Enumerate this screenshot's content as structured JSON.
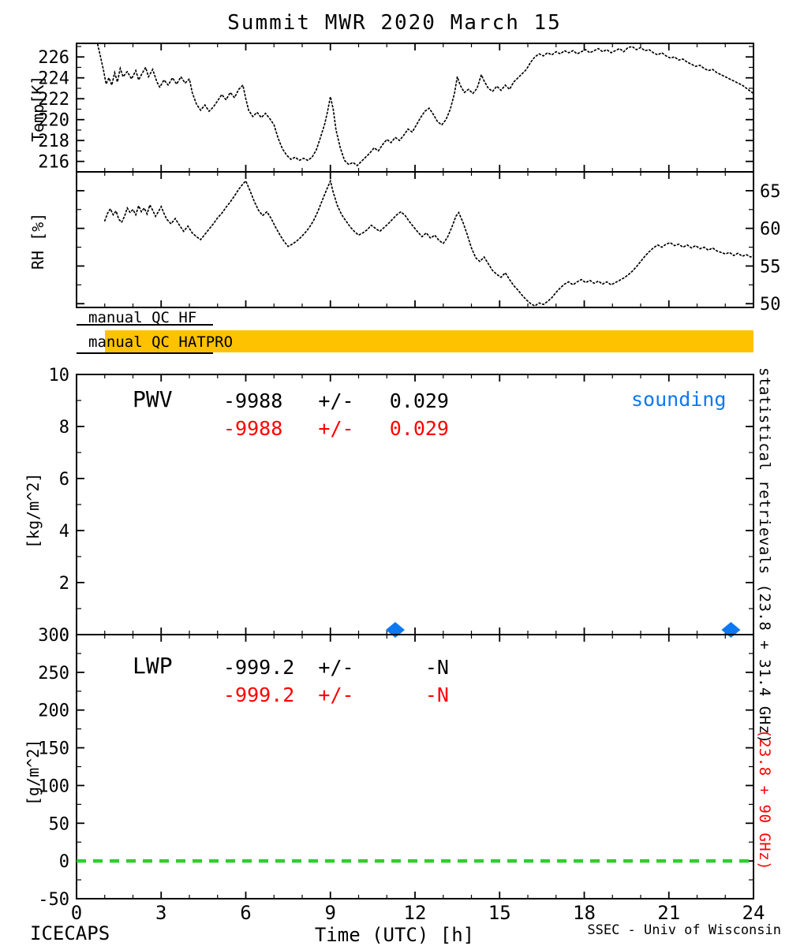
{
  "title": "Summit MWR 2020 March 15",
  "footer": {
    "left": "ICECAPS",
    "right": "SSEC - Univ of Wisconsin"
  },
  "colors": {
    "gold": "#FFC200",
    "blue": "#0d78f0",
    "red": "#ff0000",
    "green": "#33CC33",
    "black": "#000000"
  },
  "qc": [
    {
      "label": "manual QC HF",
      "bar": false
    },
    {
      "label": "manual QC HATPRO",
      "bar": true
    }
  ],
  "right_labels": {
    "black": "statistical retrievals (23.8 + 31.4 GHz)",
    "red": "(23.8 + 90 GHz)"
  },
  "xaxis": {
    "label": "Time (UTC) [h]",
    "min": 0,
    "max": 24,
    "ticks": [
      0,
      3,
      6,
      9,
      12,
      15,
      18,
      21,
      24
    ]
  },
  "chart_data": [
    {
      "id": "temp",
      "type": "line",
      "ylabel": "Temp[K]",
      "ylim": [
        215.0,
        227.3
      ],
      "yticks": [
        216,
        218,
        220,
        222,
        224,
        226
      ],
      "ytick_side": "left",
      "series": [
        {
          "name": "temperature-curve",
          "style": "dotted",
          "color": "#000000",
          "x": [
            0.75,
            0.85,
            0.95,
            1.05,
            1.15,
            1.25,
            1.35,
            1.45,
            1.55,
            1.65,
            1.8,
            1.95,
            2.1,
            2.2,
            2.3,
            2.45,
            2.55,
            2.7,
            2.85,
            2.95,
            3.1,
            3.25,
            3.4,
            3.55,
            3.7,
            3.85,
            4.0,
            4.1,
            4.25,
            4.4,
            4.55,
            4.7,
            4.85,
            5.0,
            5.15,
            5.3,
            5.45,
            5.6,
            5.75,
            5.9,
            6.0,
            6.1,
            6.25,
            6.4,
            6.55,
            6.7,
            6.85,
            7.0,
            7.15,
            7.3,
            7.45,
            7.6,
            7.75,
            7.9,
            8.05,
            8.2,
            8.35,
            8.5,
            8.65,
            8.8,
            8.9,
            9.0,
            9.1,
            9.2,
            9.35,
            9.5,
            9.65,
            9.8,
            9.95,
            10.1,
            10.25,
            10.4,
            10.55,
            10.7,
            10.85,
            11.0,
            11.15,
            11.3,
            11.45,
            11.6,
            11.75,
            11.9,
            12.05,
            12.2,
            12.35,
            12.5,
            12.65,
            12.8,
            12.95,
            13.1,
            13.25,
            13.4,
            13.5,
            13.6,
            13.75,
            13.9,
            14.05,
            14.2,
            14.35,
            14.45,
            14.6,
            14.75,
            14.9,
            15.05,
            15.2,
            15.35,
            15.5,
            15.65,
            15.8,
            15.95,
            16.1,
            16.25,
            16.4,
            16.55,
            16.7,
            16.85,
            17.0,
            17.15,
            17.3,
            17.45,
            17.6,
            17.75,
            17.9,
            18.05,
            18.2,
            18.35,
            18.5,
            18.65,
            18.8,
            18.95,
            19.1,
            19.25,
            19.4,
            19.55,
            19.7,
            19.85,
            20.0,
            20.15,
            20.3,
            20.45,
            20.6,
            20.75,
            20.9,
            21.05,
            21.2,
            21.35,
            21.5,
            21.65,
            21.8,
            21.95,
            22.1,
            22.25,
            22.4,
            22.55,
            22.7,
            22.85,
            23.0,
            23.15,
            23.3,
            23.45,
            23.6,
            23.75,
            23.9,
            24.0
          ],
          "y": [
            227.2,
            226.0,
            224.8,
            223.4,
            224.0,
            223.3,
            224.5,
            223.6,
            224.9,
            224.1,
            224.6,
            223.9,
            224.7,
            223.8,
            224.3,
            225.0,
            224.1,
            224.8,
            223.6,
            223.1,
            223.8,
            223.3,
            224.0,
            223.4,
            224.1,
            223.5,
            223.9,
            222.6,
            221.5,
            220.9,
            221.4,
            220.8,
            221.2,
            221.8,
            222.4,
            221.9,
            222.6,
            222.1,
            222.9,
            223.3,
            222.0,
            220.9,
            220.3,
            220.7,
            220.2,
            220.6,
            220.1,
            219.5,
            218.2,
            217.2,
            216.6,
            216.2,
            216.4,
            216.1,
            216.3,
            216.1,
            216.4,
            217.1,
            218.3,
            219.6,
            220.8,
            222.2,
            221.0,
            219.0,
            217.3,
            216.1,
            215.7,
            215.9,
            215.6,
            216.0,
            216.4,
            216.8,
            217.3,
            217.0,
            217.6,
            218.1,
            217.8,
            218.3,
            218.0,
            218.5,
            219.1,
            218.8,
            219.5,
            220.2,
            220.8,
            221.1,
            220.5,
            219.8,
            219.5,
            220.0,
            221.0,
            222.5,
            224.1,
            223.3,
            222.6,
            222.9,
            222.5,
            223.0,
            224.3,
            223.7,
            223.0,
            222.7,
            223.2,
            222.8,
            223.3,
            222.9,
            223.6,
            224.0,
            224.4,
            224.8,
            225.5,
            226.0,
            226.3,
            226.1,
            226.4,
            226.2,
            226.5,
            226.3,
            226.6,
            226.4,
            226.6,
            226.3,
            226.5,
            226.7,
            226.4,
            226.6,
            226.8,
            226.5,
            226.7,
            226.4,
            226.6,
            226.8,
            226.5,
            226.9,
            227.0,
            226.7,
            226.9,
            226.6,
            226.7,
            226.4,
            226.2,
            226.4,
            226.1,
            225.9,
            226.0,
            225.7,
            225.8,
            225.5,
            225.3,
            225.1,
            225.2,
            224.9,
            224.7,
            224.8,
            224.5,
            224.3,
            224.1,
            223.9,
            223.7,
            223.5,
            223.3,
            223.0,
            222.7,
            222.5
          ]
        }
      ]
    },
    {
      "id": "rh",
      "type": "line",
      "ylabel": "RH [%]",
      "ylim": [
        49.5,
        67.5
      ],
      "yticks": [
        50,
        55,
        60,
        65
      ],
      "ytick_side": "right",
      "series": [
        {
          "name": "rh-curve",
          "style": "dotted",
          "color": "#000000",
          "x": [
            1.0,
            1.1,
            1.2,
            1.3,
            1.4,
            1.5,
            1.6,
            1.7,
            1.8,
            1.9,
            2.0,
            2.1,
            2.2,
            2.3,
            2.4,
            2.5,
            2.6,
            2.7,
            2.8,
            2.9,
            3.0,
            3.1,
            3.2,
            3.35,
            3.5,
            3.65,
            3.8,
            3.95,
            4.1,
            4.25,
            4.4,
            4.55,
            4.7,
            4.85,
            5.0,
            5.15,
            5.3,
            5.45,
            5.6,
            5.75,
            5.9,
            6.0,
            6.15,
            6.3,
            6.45,
            6.6,
            6.75,
            6.9,
            7.05,
            7.2,
            7.35,
            7.5,
            7.65,
            7.8,
            7.95,
            8.1,
            8.25,
            8.4,
            8.55,
            8.7,
            8.85,
            9.0,
            9.1,
            9.25,
            9.4,
            9.55,
            9.7,
            9.85,
            10.0,
            10.15,
            10.3,
            10.45,
            10.6,
            10.75,
            10.9,
            11.05,
            11.2,
            11.35,
            11.5,
            11.65,
            11.8,
            11.95,
            12.1,
            12.25,
            12.4,
            12.55,
            12.7,
            12.85,
            13.0,
            13.15,
            13.3,
            13.45,
            13.55,
            13.7,
            13.85,
            14.0,
            14.15,
            14.3,
            14.45,
            14.6,
            14.75,
            14.9,
            15.05,
            15.2,
            15.35,
            15.5,
            15.65,
            15.8,
            15.95,
            16.1,
            16.25,
            16.4,
            16.55,
            16.7,
            16.85,
            17.0,
            17.15,
            17.3,
            17.45,
            17.6,
            17.75,
            17.9,
            18.05,
            18.2,
            18.35,
            18.5,
            18.65,
            18.8,
            18.95,
            19.1,
            19.25,
            19.4,
            19.55,
            19.7,
            19.85,
            20.0,
            20.15,
            20.3,
            20.45,
            20.6,
            20.75,
            20.9,
            21.05,
            21.2,
            21.35,
            21.5,
            21.65,
            21.8,
            21.95,
            22.1,
            22.25,
            22.4,
            22.55,
            22.7,
            22.85,
            23.0,
            23.15,
            23.3,
            23.45,
            23.6,
            23.75,
            23.9,
            24.0
          ],
          "y": [
            61.0,
            62.0,
            62.6,
            61.8,
            62.3,
            61.2,
            60.8,
            61.6,
            62.7,
            62.1,
            62.5,
            61.8,
            63.0,
            62.2,
            62.7,
            61.9,
            63.1,
            62.4,
            61.6,
            62.2,
            62.9,
            62.0,
            61.2,
            60.6,
            61.3,
            60.4,
            59.6,
            60.3,
            59.4,
            58.9,
            58.5,
            59.2,
            59.9,
            60.6,
            61.4,
            62.0,
            62.8,
            63.5,
            64.3,
            65.2,
            65.9,
            66.3,
            65.0,
            63.6,
            62.4,
            61.7,
            62.2,
            61.3,
            60.2,
            59.2,
            58.3,
            57.6,
            57.9,
            58.3,
            58.8,
            59.4,
            60.1,
            61.0,
            62.2,
            63.6,
            65.0,
            66.3,
            64.8,
            63.0,
            61.8,
            61.0,
            60.2,
            59.6,
            59.1,
            59.4,
            59.8,
            60.4,
            60.0,
            59.6,
            60.1,
            60.6,
            61.2,
            61.8,
            62.2,
            61.7,
            60.9,
            60.2,
            59.5,
            58.9,
            59.4,
            58.7,
            59.1,
            58.4,
            58.0,
            58.8,
            60.1,
            61.6,
            62.1,
            60.8,
            59.2,
            57.4,
            56.1,
            55.6,
            56.2,
            55.3,
            54.4,
            53.9,
            53.5,
            54.1,
            53.2,
            52.4,
            51.8,
            51.1,
            50.5,
            50.0,
            49.7,
            50.1,
            49.9,
            50.3,
            50.8,
            51.5,
            52.1,
            52.6,
            52.9,
            52.5,
            52.9,
            53.2,
            52.8,
            53.1,
            52.7,
            53.0,
            52.6,
            52.9,
            52.5,
            52.8,
            53.1,
            53.4,
            53.8,
            54.3,
            54.9,
            55.6,
            56.3,
            56.9,
            57.4,
            57.8,
            57.5,
            57.9,
            58.1,
            57.7,
            57.9,
            57.5,
            57.8,
            57.4,
            57.7,
            57.3,
            57.5,
            57.1,
            57.4,
            57.0,
            56.8,
            56.6,
            56.8,
            56.4,
            56.7,
            56.3,
            56.5,
            56.2,
            56.4
          ]
        }
      ]
    },
    {
      "id": "pwv",
      "type": "scatter",
      "ylabel": "[kg/m^2]",
      "ylim": [
        0,
        10
      ],
      "yticks": [
        0,
        2,
        4,
        6,
        8,
        10
      ],
      "ytick_side": "left",
      "label": "PWV",
      "stats_black": "-9988   +/-   0.029",
      "stats_red": "-9988   +/-   0.029",
      "legend": "sounding",
      "series": [
        {
          "name": "sounding-diamond",
          "marker": "diamond",
          "color": "#0d78f0",
          "x": [
            11.3,
            23.2
          ],
          "y": [
            0.18,
            0.18
          ]
        }
      ]
    },
    {
      "id": "lwp",
      "type": "line",
      "ylabel": "[g/m^2]",
      "ylim": [
        -50,
        300
      ],
      "yticks": [
        -50,
        0,
        50,
        100,
        150,
        200,
        250,
        300
      ],
      "ytick_side": "left",
      "label": "LWP",
      "stats_black": "-999.2  +/-      -N",
      "stats_red": "-999.2  +/-      -N",
      "series": [
        {
          "name": "lwp-zero-line",
          "style": "dashed",
          "color": "#33CC33",
          "width": 4.5,
          "x": [
            0,
            24
          ],
          "y": [
            0,
            0
          ]
        }
      ]
    }
  ]
}
